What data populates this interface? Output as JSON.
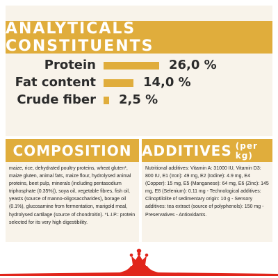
{
  "analytical": {
    "title": "ANALYTICALS CONSTITUENTS",
    "rows": [
      {
        "label": "Protein",
        "value_text": "26,0 %",
        "value": 26.0
      },
      {
        "label": "Fat content",
        "value_text": "14,0 %",
        "value": 14.0
      },
      {
        "label": "Crude fiber",
        "value_text": "2,5 %",
        "value": 2.5
      }
    ]
  },
  "composition": {
    "title": "COMPOSITION",
    "text": "maize, rice, dehydrated poultry proteins, wheat gluten*, maize gluten, animal fats, maize flour, hydrolysed animal proteins, beet pulp, minerals (including pentasodium triphosphate (0.35%)), soya oil, vegetable fibres, fish oil, yeasts (source of manno-oligosaccharides), borage oil (0.1%), glucosamine from fermentation, marigold meal, hydrolysed cartilage (source of chondroitin). *L.I.P.: protein selected for its very high digestibility."
  },
  "additives": {
    "title": "ADDITIVES",
    "unit": "(per kg)",
    "text": "Nutritional additives: Vitamin A: 31000 IU, Vitamin D3: 800 IU, E1 (Iron): 49 mg, E2 (Iodine): 4.9 mg, E4 (Copper): 15 mg, E5 (Manganese): 64 mg, E6 (Zinc): 145 mg, E8 (Selenium): 0.11 mg - Technological additives: Clinoptilolite of sedimentary origin: 10 g - Sensory additives: tea extract (source of polyphenols): 150 mg - Preservatives - Antioxidants."
  },
  "colors": {
    "accent": "#e0ad3c",
    "panel": "#f8f3ea",
    "logo_red": "#e1251b"
  },
  "icons": [
    "royal-canin-crown-logo"
  ]
}
